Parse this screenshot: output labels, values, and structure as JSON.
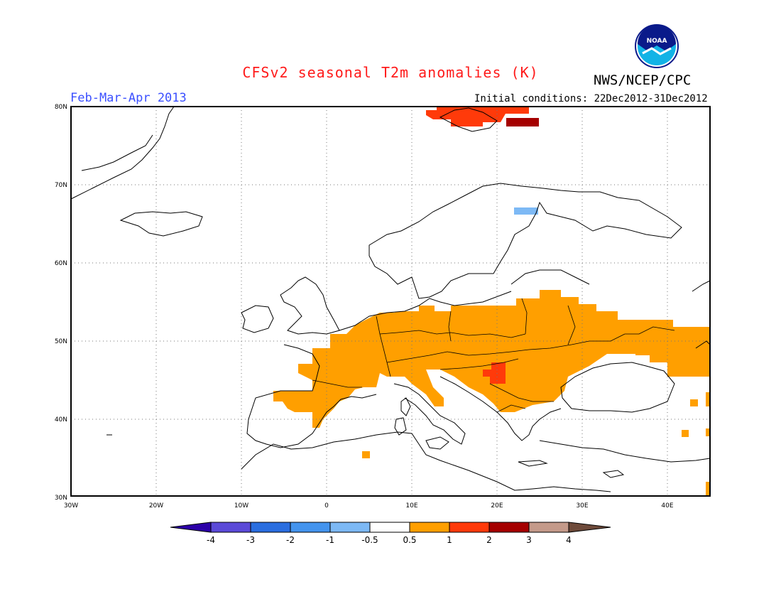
{
  "header": {
    "title": "CFSv2 seasonal T2m anomalies (K)",
    "org": "NWS/NCEP/CPC",
    "period": "Feb-Mar-Apr 2013",
    "init": "Initial conditions: 22Dec2012-31Dec2012",
    "logo_text": "NOAA"
  },
  "map": {
    "lat_range": [
      30,
      80
    ],
    "lon_range": [
      -30,
      45
    ],
    "lat_labels": [
      "80N",
      "70N",
      "60N",
      "50N",
      "40N",
      "30N"
    ],
    "lon_labels": [
      "30W",
      "20W",
      "10W",
      "0",
      "10E",
      "20E",
      "30E",
      "40E"
    ]
  },
  "colorbar": {
    "labels": [
      "-4",
      "-3",
      "-2",
      "-1",
      "-0.5",
      "0.5",
      "1",
      "2",
      "3",
      "4"
    ],
    "colors": [
      "#2c00a8",
      "#5b4ad8",
      "#2a6ee0",
      "#4494ee",
      "#7db9f5",
      "#ffffff",
      "#ff9f00",
      "#ff3a0a",
      "#a50000",
      "#c49a8a",
      "#6e4a3a"
    ]
  },
  "anomalies": [
    {
      "level": "warm1",
      "color": "#ff9f00"
    },
    {
      "level": "warm2",
      "color": "#ff3a0a"
    },
    {
      "level": "warm3",
      "color": "#a50000"
    },
    {
      "level": "cool1",
      "color": "#7db9f5"
    }
  ]
}
